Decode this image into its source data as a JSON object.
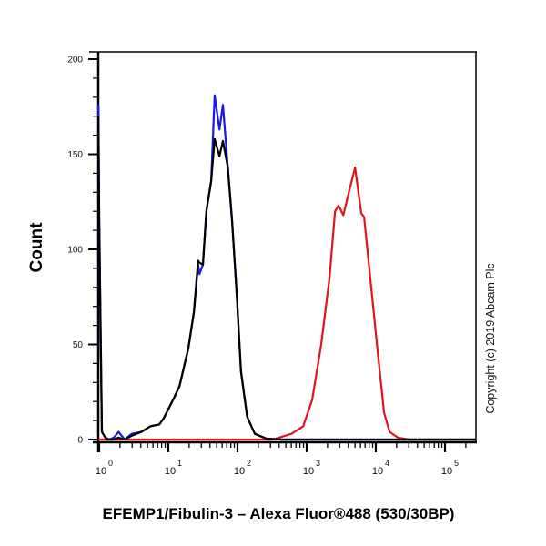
{
  "chart_data": {
    "type": "line",
    "title": "EFEMP1/Fibulin-3 – Alexa Fluor®488 (530/30BP)",
    "xlabel": "EFEMP1/Fibulin-3 – Alexa Fluor®488 (530/30BP)",
    "ylabel": "Count",
    "xscale": "log10",
    "x_units": "log10 of fluorescence intensity",
    "xlim_log10": [
      -0.01,
      5.45
    ],
    "ylim": [
      0,
      200
    ],
    "grid": false,
    "y_ticks": [
      "0",
      "50",
      "100",
      "150",
      "200"
    ],
    "y_tick_values": [
      0,
      50,
      100,
      150,
      200
    ],
    "x_ticks": [
      {
        "base": "10",
        "exp": "0",
        "value_log10": 0
      },
      {
        "base": "10",
        "exp": "1",
        "value_log10": 1
      },
      {
        "base": "10",
        "exp": "2",
        "value_log10": 2
      },
      {
        "base": "10",
        "exp": "3",
        "value_log10": 3
      },
      {
        "base": "10",
        "exp": "4",
        "value_log10": 4
      },
      {
        "base": "10",
        "exp": "5",
        "value_log10": 5
      }
    ],
    "series": [
      {
        "color": "#1a1adc",
        "x_log10": [
          -0.01,
          0.0,
          0.04,
          0.09,
          0.14,
          0.21,
          0.28,
          0.37,
          0.47,
          0.61,
          0.74,
          0.87,
          0.93,
          1.07,
          1.16,
          1.29,
          1.37,
          1.43,
          1.45,
          1.5,
          1.55,
          1.62,
          1.67,
          1.74,
          1.79,
          1.86,
          1.92,
          1.99,
          2.05,
          2.14,
          2.25,
          2.42,
          2.64,
          5.45
        ],
        "y": [
          176,
          120,
          4,
          1,
          0,
          1,
          4,
          0,
          3,
          4,
          7,
          8,
          11,
          21,
          28,
          48,
          67,
          92,
          87,
          92,
          120,
          136,
          181,
          163,
          176,
          143,
          116,
          76,
          36,
          12,
          3,
          0.5,
          0,
          0
        ]
      },
      {
        "color": "#000000",
        "x_log10": [
          -0.01,
          0.0,
          0.04,
          0.09,
          0.14,
          0.21,
          0.28,
          0.37,
          0.47,
          0.61,
          0.74,
          0.87,
          0.93,
          1.07,
          1.16,
          1.29,
          1.37,
          1.43,
          1.45,
          1.5,
          1.55,
          1.62,
          1.67,
          1.74,
          1.79,
          1.86,
          1.92,
          1.99,
          2.05,
          2.14,
          2.25,
          2.42,
          2.64,
          5.45
        ],
        "y": [
          170,
          115,
          4,
          1,
          0,
          0,
          1,
          0,
          2,
          4,
          7,
          8,
          11,
          21,
          28,
          48,
          67,
          94,
          93,
          92,
          120,
          136,
          158,
          149,
          157,
          143,
          116,
          76,
          36,
          12,
          3,
          0.5,
          0,
          0
        ]
      },
      {
        "color": "#e0141e",
        "x_log10": [
          -0.01,
          2.51,
          2.78,
          2.95,
          3.08,
          3.21,
          3.33,
          3.41,
          3.46,
          3.53,
          3.61,
          3.7,
          3.79,
          3.83,
          3.92,
          4.03,
          4.12,
          4.2,
          4.32,
          4.49,
          5.45
        ],
        "y": [
          0,
          0,
          3,
          7,
          21,
          50,
          85,
          120,
          123,
          118,
          130,
          143,
          119,
          117,
          85,
          45,
          14,
          4,
          1,
          0,
          0
        ]
      }
    ]
  },
  "copyright": "Copyright (c) 2019 Abcam Plc"
}
